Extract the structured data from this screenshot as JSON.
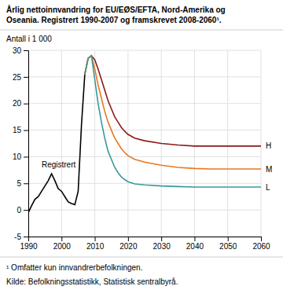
{
  "chart_data": {
    "type": "line",
    "title": [
      "Årlig nettoinnvandring for EU/EØS/EFTA, Nord-Amerika og",
      "Oseania. Registrert 1990-2007 og framskrevet 2008-2060¹."
    ],
    "ylabel": "Antall i 1 000",
    "footnotes": [
      "¹ Omfatter kun innvandrerbefolkningen.",
      "Kilde: Befolkningsstatistikk, Statistisk sentralbyrå."
    ],
    "xlim": [
      1990,
      2060
    ],
    "ylim": [
      -5,
      30
    ],
    "xticks": [
      1990,
      2000,
      2010,
      2020,
      2030,
      2040,
      2050,
      2060
    ],
    "yticks": [
      -5,
      0,
      5,
      10,
      15,
      20,
      25,
      30
    ],
    "grid": true,
    "series": [
      {
        "name": "Registrert",
        "color": "#000000",
        "x": [
          1990,
          1991,
          1992,
          1993,
          1994,
          1995,
          1996,
          1997,
          1998,
          1999,
          2000,
          2001,
          2002,
          2003,
          2004,
          2005,
          2006,
          2007
        ],
        "values": [
          -0.5,
          0.8,
          2.0,
          2.5,
          3.5,
          4.5,
          5.5,
          6.8,
          5.5,
          4.0,
          3.5,
          2.5,
          1.5,
          1.2,
          1.0,
          3.5,
          16.0,
          25.5
        ]
      },
      {
        "name": "H",
        "color": "#8B1A1A",
        "x": [
          2007,
          2008,
          2009,
          2010,
          2011,
          2012,
          2013,
          2014,
          2015,
          2016,
          2017,
          2018,
          2019,
          2020,
          2022,
          2025,
          2030,
          2035,
          2040,
          2045,
          2050,
          2055,
          2060
        ],
        "values": [
          25.5,
          28.5,
          29.0,
          28.2,
          26.5,
          24.5,
          22.5,
          20.5,
          19.0,
          17.5,
          16.5,
          15.5,
          14.8,
          14.2,
          13.5,
          13.0,
          12.5,
          12.2,
          12.0,
          12.0,
          12.0,
          12.0,
          12.0
        ]
      },
      {
        "name": "M",
        "color": "#E87722",
        "x": [
          2007,
          2008,
          2009,
          2010,
          2011,
          2012,
          2013,
          2014,
          2015,
          2016,
          2017,
          2018,
          2019,
          2020,
          2022,
          2025,
          2030,
          2035,
          2040,
          2045,
          2050,
          2055,
          2060
        ],
        "values": [
          25.5,
          28.5,
          29.0,
          26.5,
          23.5,
          21.0,
          18.5,
          16.5,
          15.0,
          13.5,
          12.5,
          11.5,
          10.8,
          10.2,
          9.5,
          9.0,
          8.4,
          8.0,
          7.8,
          7.7,
          7.7,
          7.7,
          7.7
        ]
      },
      {
        "name": "L",
        "color": "#3A9999",
        "x": [
          2007,
          2008,
          2009,
          2010,
          2011,
          2012,
          2013,
          2014,
          2015,
          2016,
          2017,
          2018,
          2019,
          2020,
          2022,
          2025,
          2030,
          2035,
          2040,
          2045,
          2050,
          2055,
          2060
        ],
        "values": [
          25.5,
          28.5,
          29.0,
          24.5,
          20.0,
          16.5,
          13.5,
          11.0,
          9.5,
          8.0,
          7.0,
          6.2,
          5.7,
          5.3,
          4.9,
          4.7,
          4.5,
          4.4,
          4.3,
          4.3,
          4.3,
          4.3,
          4.3
        ]
      }
    ]
  }
}
